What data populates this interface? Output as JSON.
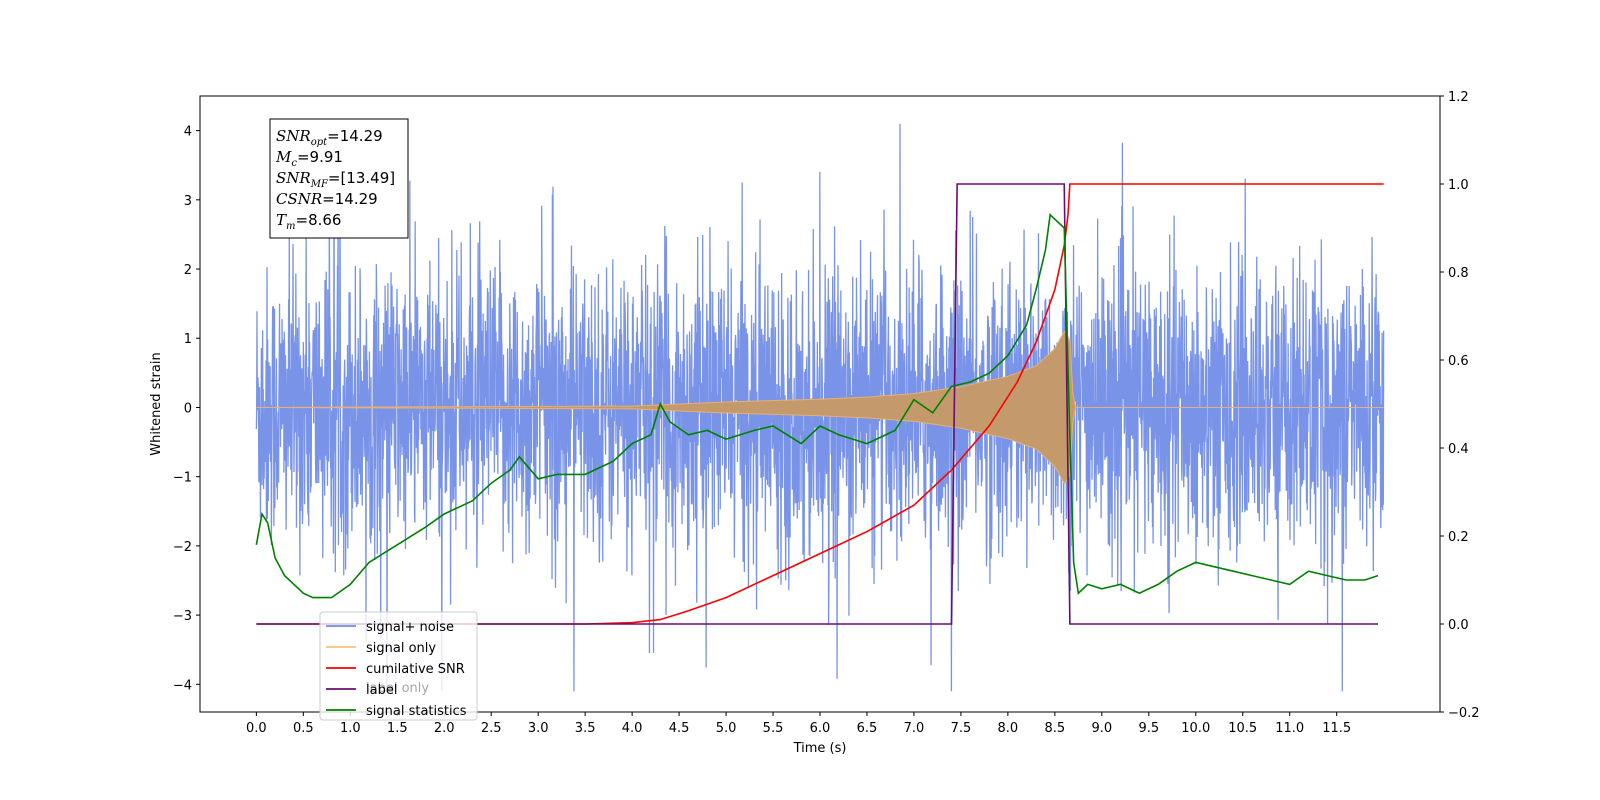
{
  "chart_data": {
    "type": "line",
    "xlabel": "Time (s)",
    "ylabel": "Whitened strain",
    "xlim": [
      -0.6,
      12.6
    ],
    "ylim": [
      -4.4,
      4.5
    ],
    "ylim_right": [
      -0.2,
      1.2
    ],
    "x_ticks": [
      0.0,
      0.5,
      1.0,
      1.5,
      2.0,
      2.5,
      3.0,
      3.5,
      4.0,
      4.5,
      5.0,
      5.5,
      6.0,
      6.5,
      7.0,
      7.5,
      8.0,
      8.5,
      9.0,
      9.5,
      10.0,
      10.5,
      11.0,
      11.5
    ],
    "x_tick_labels": [
      "0.0",
      "0.5",
      "1.0",
      "1.5",
      "2.0",
      "2.5",
      "3.0",
      "3.5",
      "4.0",
      "4.5",
      "5.0",
      "5.5",
      "6.0",
      "6.5",
      "7.0",
      "7.5",
      "8.0",
      "8.5",
      "9.0",
      "9.5",
      "10.0",
      "10.5",
      "11.0",
      "11.5"
    ],
    "y_ticks": [
      -4,
      -3,
      -2,
      -1,
      0,
      1,
      2,
      3,
      4
    ],
    "y_tick_labels": [
      "−4",
      "−3",
      "−2",
      "−1",
      "0",
      "1",
      "2",
      "3",
      "4"
    ],
    "y_ticks_right": [
      -0.2,
      0.0,
      0.2,
      0.4,
      0.6,
      0.8,
      1.0,
      1.2
    ],
    "y_tick_labels_right": [
      "−0.2",
      "0.0",
      "0.2",
      "0.4",
      "0.6",
      "0.8",
      "1.0",
      "1.2"
    ],
    "legend": {
      "placement": "lower-left",
      "entries": [
        {
          "label": "signal+ noise",
          "color": "#6d8ae6"
        },
        {
          "label": "signal only",
          "color": "#f5c27a"
        },
        {
          "label": "cumilative SNR",
          "color": "#ff0000"
        },
        {
          "label": "label",
          "color": "#6a0d6f"
        },
        {
          "label": "signal statistics",
          "color": "#008000"
        }
      ],
      "overlapped_label": "label only"
    },
    "annotation": {
      "lines": [
        {
          "name": "SNR",
          "sub": "opt",
          "value": "=14.29"
        },
        {
          "name": "M",
          "sub": "c",
          "value": "=9.91"
        },
        {
          "name": "SNR",
          "sub": "MF",
          "value": "=[13.49]"
        },
        {
          "name": "CSNR",
          "sub": "",
          "value": "=14.29"
        },
        {
          "name": "T",
          "sub": "m",
          "value": "=8.66"
        }
      ]
    },
    "series": [
      {
        "name": "signal+ noise",
        "axis": "left",
        "color": "#6d8ae6",
        "kind": "noise",
        "x_range": [
          0.0,
          12.0
        ],
        "typical_amplitude": 1.5,
        "peak_range": [
          -4.1,
          4.1
        ]
      },
      {
        "name": "signal only",
        "axis": "left",
        "color": "#c49a6c",
        "kind": "chirp",
        "x_range": [
          0.0,
          12.0
        ],
        "envelope": {
          "x": [
            0.0,
            4.0,
            5.0,
            6.0,
            6.5,
            7.0,
            7.5,
            8.0,
            8.3,
            8.5,
            8.6,
            8.66,
            8.7,
            12.0
          ],
          "y": [
            0.0,
            0.02,
            0.08,
            0.12,
            0.15,
            0.2,
            0.3,
            0.45,
            0.6,
            0.85,
            1.1,
            1.0,
            0.0,
            0.0
          ]
        }
      },
      {
        "name": "cumilative SNR",
        "axis": "right",
        "color": "#ff0000",
        "x": [
          0.0,
          3.5,
          4.0,
          4.3,
          4.6,
          5.0,
          5.5,
          6.0,
          6.5,
          7.0,
          7.4,
          7.8,
          8.1,
          8.3,
          8.5,
          8.6,
          8.64,
          8.66,
          12.0
        ],
        "y": [
          0.0,
          0.0,
          0.003,
          0.01,
          0.03,
          0.06,
          0.11,
          0.16,
          0.21,
          0.27,
          0.35,
          0.45,
          0.55,
          0.64,
          0.76,
          0.86,
          0.93,
          1.0,
          1.0
        ]
      },
      {
        "name": "label",
        "axis": "right",
        "color": "#6a0d6f",
        "x": [
          0.0,
          7.4,
          7.46,
          8.6,
          8.66,
          11.94
        ],
        "y": [
          0.0,
          0.0,
          1.0,
          1.0,
          0.0,
          0.0
        ]
      },
      {
        "name": "signal statistics",
        "axis": "right",
        "color": "#008000",
        "x": [
          0.0,
          0.06,
          0.12,
          0.2,
          0.3,
          0.5,
          0.6,
          0.8,
          1.0,
          1.2,
          1.5,
          1.8,
          2.0,
          2.3,
          2.5,
          2.7,
          2.8,
          3.0,
          3.2,
          3.5,
          3.8,
          4.0,
          4.2,
          4.3,
          4.4,
          4.6,
          4.8,
          5.0,
          5.3,
          5.5,
          5.8,
          6.0,
          6.2,
          6.5,
          6.8,
          7.0,
          7.2,
          7.4,
          7.6,
          7.8,
          8.0,
          8.2,
          8.3,
          8.4,
          8.45,
          8.5,
          8.6,
          8.65,
          8.7,
          8.75,
          8.85,
          9.0,
          9.2,
          9.4,
          9.6,
          9.8,
          10.0,
          10.2,
          10.4,
          10.6,
          10.8,
          11.0,
          11.2,
          11.4,
          11.6,
          11.8,
          11.94
        ],
        "y": [
          0.18,
          0.25,
          0.23,
          0.15,
          0.11,
          0.07,
          0.06,
          0.06,
          0.09,
          0.14,
          0.18,
          0.22,
          0.25,
          0.28,
          0.32,
          0.35,
          0.38,
          0.33,
          0.34,
          0.34,
          0.37,
          0.41,
          0.43,
          0.5,
          0.46,
          0.43,
          0.44,
          0.42,
          0.44,
          0.45,
          0.41,
          0.45,
          0.43,
          0.41,
          0.44,
          0.51,
          0.48,
          0.54,
          0.55,
          0.57,
          0.61,
          0.68,
          0.76,
          0.85,
          0.93,
          0.92,
          0.9,
          0.5,
          0.14,
          0.07,
          0.09,
          0.08,
          0.09,
          0.07,
          0.09,
          0.12,
          0.14,
          0.13,
          0.12,
          0.11,
          0.1,
          0.09,
          0.12,
          0.11,
          0.1,
          0.1,
          0.11
        ]
      }
    ]
  }
}
